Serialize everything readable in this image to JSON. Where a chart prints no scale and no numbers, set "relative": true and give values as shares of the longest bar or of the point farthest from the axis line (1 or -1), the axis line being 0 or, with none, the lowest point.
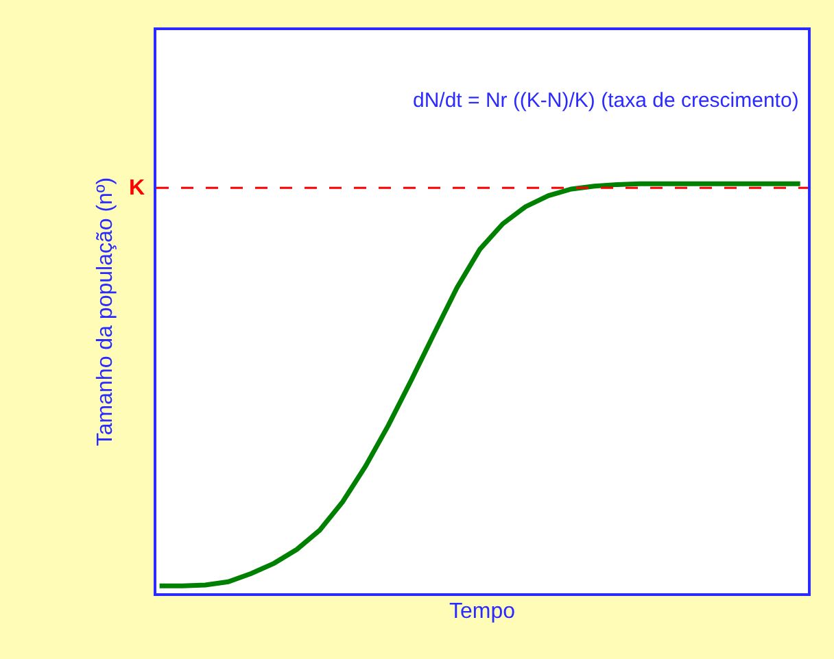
{
  "chart_data": {
    "type": "line",
    "relative": true,
    "xlabel": "Tempo",
    "ylabel": "Tamanho da população (nº)",
    "annotations": [
      "dN/dt = Nr ((K-N)/K) (taxa de crescimento)"
    ],
    "categories": [
      null,
      null,
      null,
      null,
      null,
      null,
      null,
      null,
      null,
      null,
      null,
      null,
      null,
      null,
      null,
      null,
      null,
      null,
      null,
      null,
      null,
      null,
      null,
      null,
      null,
      null,
      null,
      null,
      null
    ],
    "series": [
      {
        "color": "#008000",
        "values": [
          0.018,
          0.018,
          0.02,
          0.028,
          0.048,
          0.073,
          0.107,
          0.154,
          0.223,
          0.31,
          0.41,
          0.52,
          0.634,
          0.746,
          0.84,
          0.902,
          0.944,
          0.971,
          0.987,
          0.994,
          0.998,
          1,
          1,
          1,
          1,
          1,
          1,
          1,
          1
        ]
      }
    ],
    "ref_lines": [
      {
        "axis": "y",
        "value": 0.99,
        "label": "K",
        "color": "#ff0000",
        "line_style": "dashed"
      }
    ],
    "marker": "none",
    "line_style": "solid"
  }
}
